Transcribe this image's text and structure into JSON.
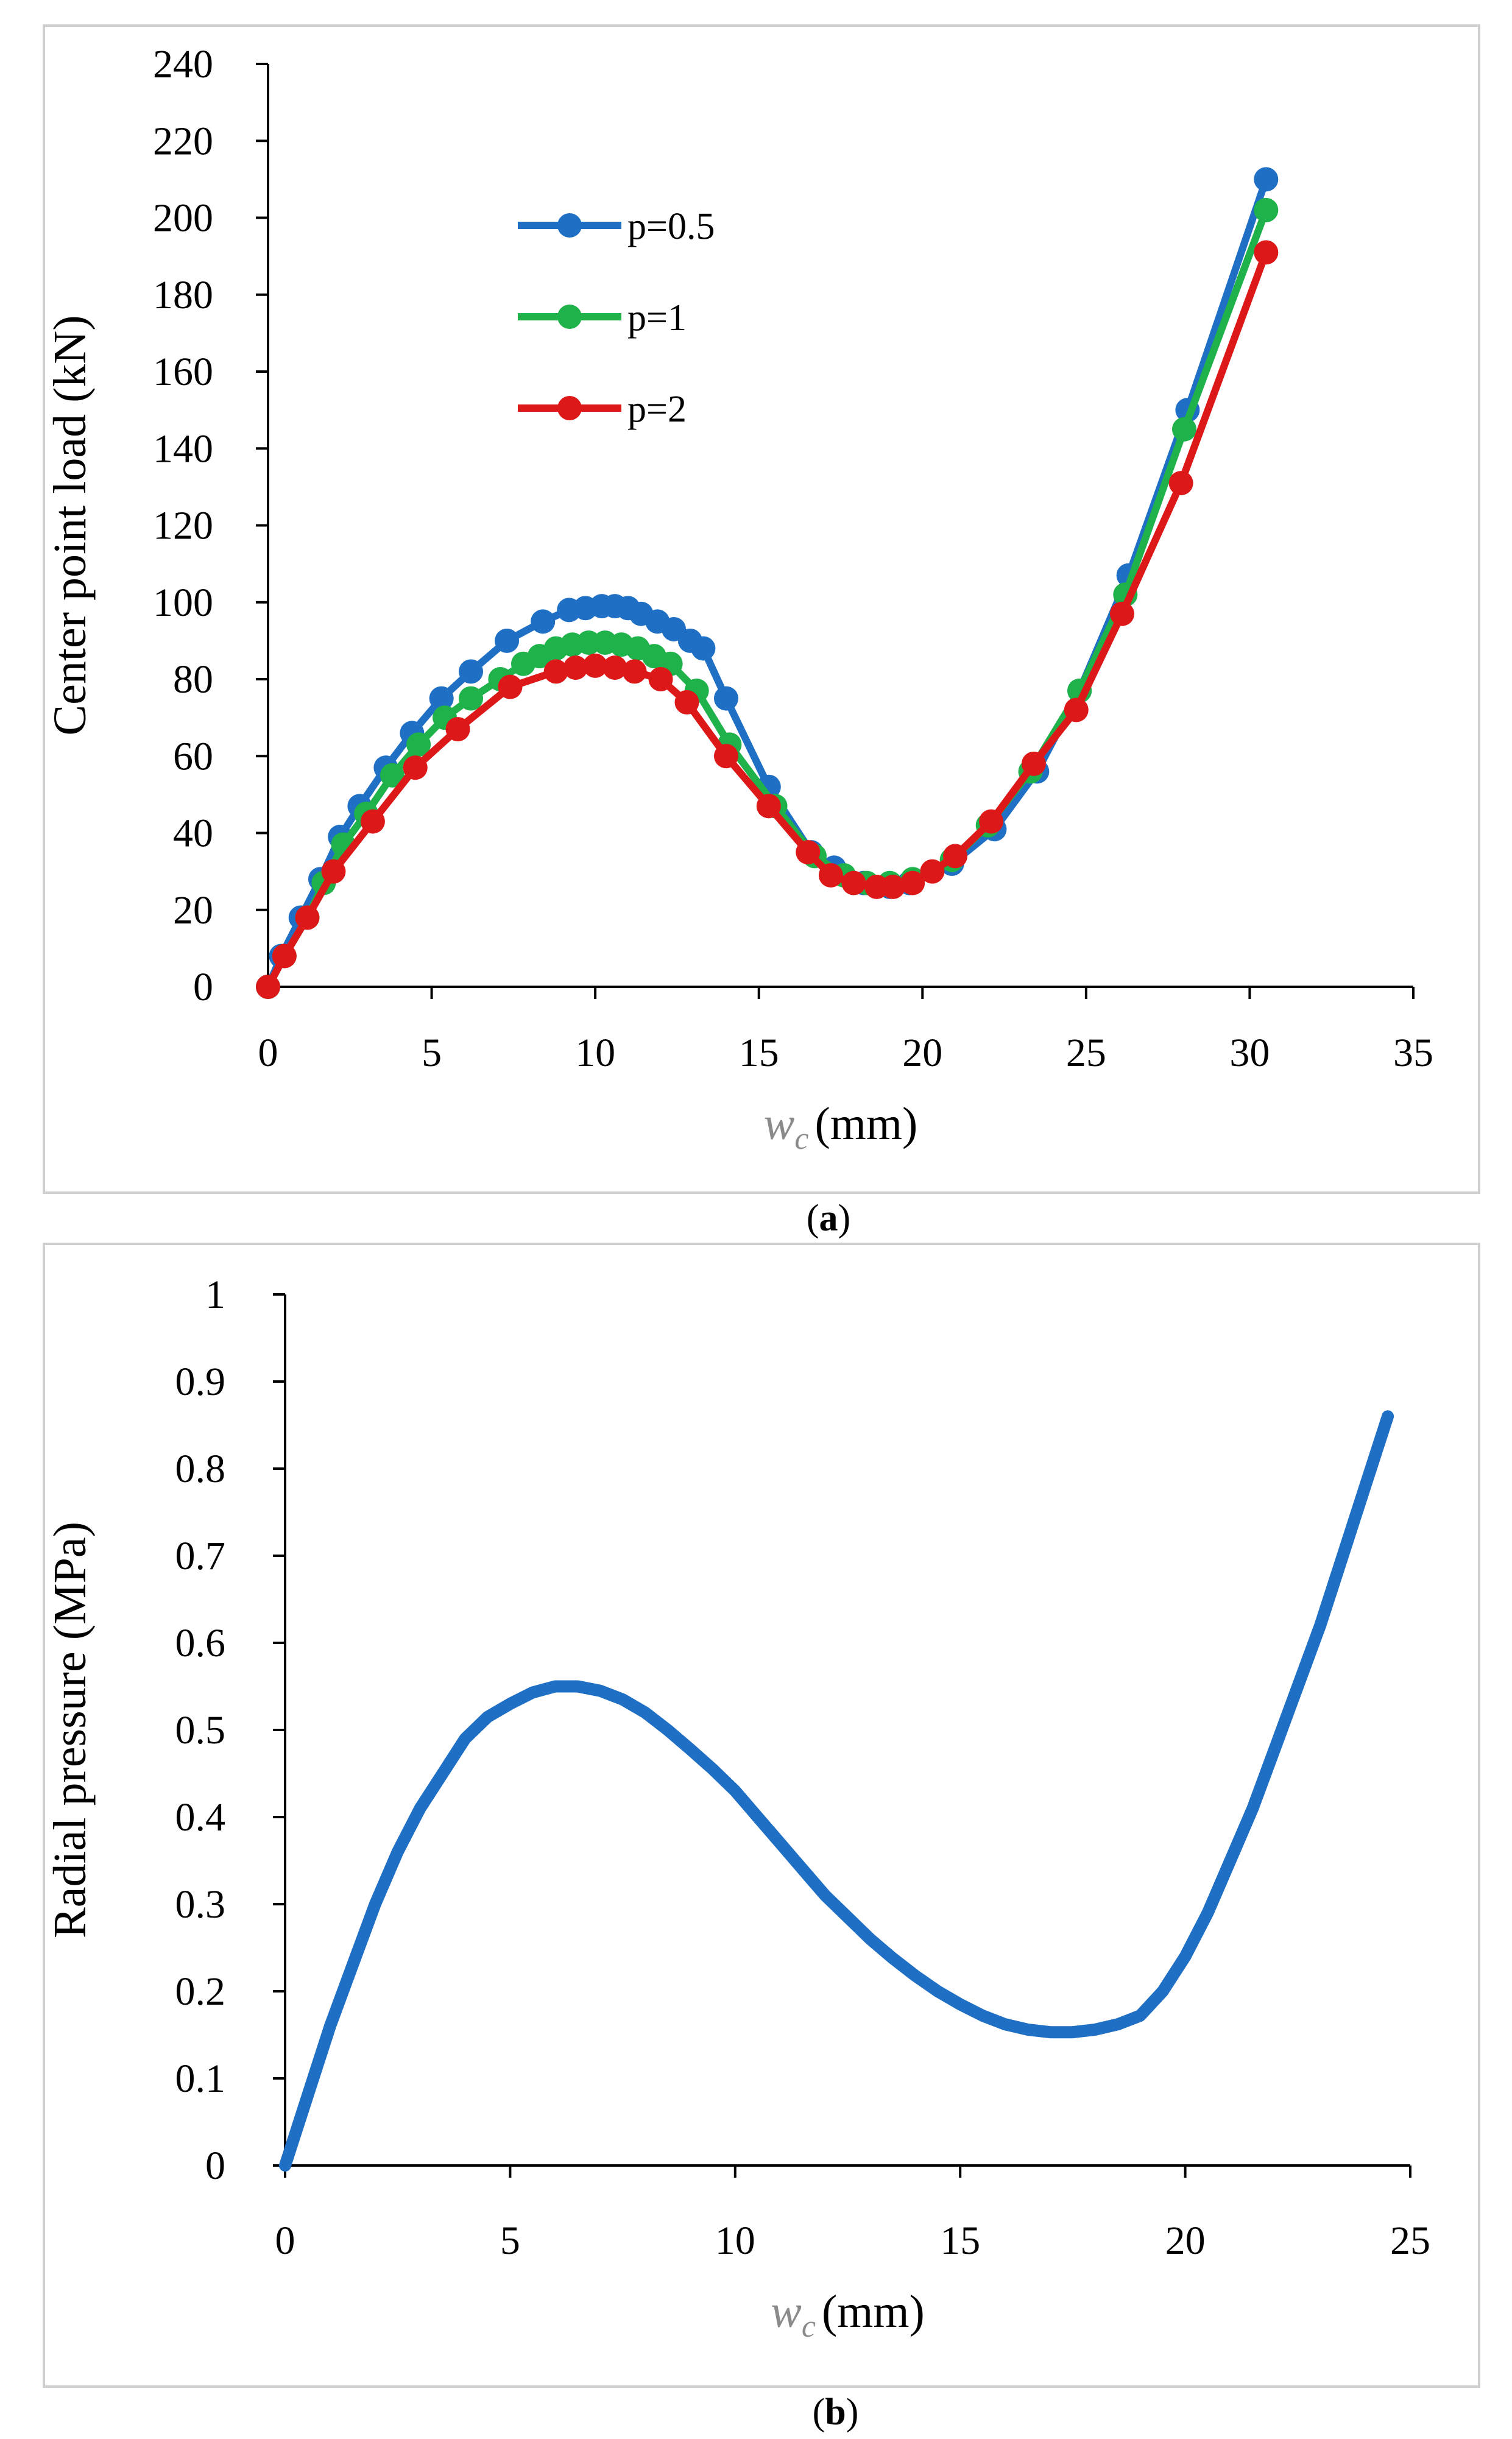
{
  "chart_data": [
    {
      "type": "line",
      "panel": "a",
      "caption_prefix": "(",
      "caption_label": "a",
      "caption_suffix": ")",
      "xlabel_var": "w",
      "xlabel_sub": "c",
      "xlabel_unit": "(mm)",
      "ylabel": "Center point load (kN)",
      "xlim": [
        0,
        35
      ],
      "ylim": [
        0,
        240
      ],
      "xticks": [
        "0",
        "5",
        "10",
        "15",
        "20",
        "25",
        "30",
        "35"
      ],
      "yticks": [
        "0",
        "20",
        "40",
        "60",
        "80",
        "100",
        "120",
        "140",
        "160",
        "180",
        "200",
        "220",
        "240"
      ],
      "legend_position": "upper-left",
      "series": [
        {
          "name": "p=0.5",
          "color": "#1f6fc5",
          "x": [
            0,
            0.4,
            1.0,
            1.6,
            2.2,
            2.8,
            3.6,
            4.4,
            5.3,
            6.2,
            7.3,
            8.4,
            9.2,
            9.7,
            10.2,
            10.6,
            11.0,
            11.4,
            11.9,
            12.4,
            12.9,
            13.3,
            14.0,
            15.3,
            16.6,
            17.3,
            18.2,
            19.0,
            19.6,
            20.9,
            22.2,
            23.5,
            24.8,
            26.3,
            28.1,
            30.5
          ],
          "y": [
            0,
            8,
            18,
            28,
            39,
            47,
            57,
            66,
            75,
            82,
            90,
            95,
            98,
            98.5,
            99,
            99,
            98.5,
            97,
            95,
            93,
            90,
            88,
            75,
            52,
            35,
            31,
            27,
            26,
            27,
            32,
            41,
            56,
            77,
            107,
            150,
            210
          ]
        },
        {
          "name": "p=1",
          "color": "#1fb14a",
          "x": [
            0,
            0.5,
            1.2,
            1.7,
            2.3,
            3.0,
            3.8,
            4.6,
            5.4,
            6.2,
            7.1,
            7.8,
            8.3,
            8.8,
            9.3,
            9.8,
            10.3,
            10.8,
            11.3,
            11.8,
            12.3,
            13.1,
            14.1,
            15.5,
            16.7,
            17.6,
            18.3,
            19.0,
            19.7,
            20.9,
            22.0,
            23.3,
            24.8,
            26.2,
            28.0,
            30.5
          ],
          "y": [
            0,
            8,
            18,
            27,
            37,
            45,
            55,
            63,
            70,
            75,
            80,
            84,
            86,
            88,
            89,
            89.5,
            89.5,
            89,
            88,
            86,
            84,
            77,
            63,
            47,
            34,
            29,
            27,
            27,
            28,
            33,
            42,
            56,
            77,
            102,
            145,
            202
          ]
        },
        {
          "name": "p=2",
          "color": "#dd1818",
          "x": [
            0,
            0.5,
            1.2,
            2.0,
            3.2,
            4.5,
            5.8,
            7.4,
            8.8,
            9.4,
            10.0,
            10.6,
            11.2,
            12.0,
            12.8,
            14.0,
            15.3,
            16.5,
            17.2,
            17.9,
            18.6,
            19.1,
            19.7,
            20.3,
            21.0,
            22.1,
            23.4,
            24.7,
            26.1,
            27.9,
            30.5
          ],
          "y": [
            0,
            8,
            18,
            30,
            43,
            57,
            67,
            78,
            82,
            83,
            83.5,
            83,
            82,
            80,
            74,
            60,
            47,
            35,
            29,
            27,
            26,
            26,
            27,
            30,
            34,
            43,
            58,
            72,
            97,
            131,
            191
          ]
        }
      ]
    },
    {
      "type": "line",
      "panel": "b",
      "caption_prefix": "(",
      "caption_label": "b",
      "caption_suffix": ")",
      "xlabel_var": "w",
      "xlabel_sub": "c",
      "xlabel_unit": "(mm)",
      "ylabel": "Radial pressure (MPa)",
      "xlim": [
        0,
        25
      ],
      "ylim": [
        0,
        1
      ],
      "xticks": [
        "0",
        "5",
        "10",
        "15",
        "20",
        "25"
      ],
      "yticks": [
        "0",
        "0.1",
        "0.2",
        "0.3",
        "0.4",
        "0.5",
        "0.6",
        "0.7",
        "0.8",
        "0.9",
        "1"
      ],
      "series": [
        {
          "name": "Radial pressure",
          "color": "#1f6fc5",
          "x": [
            0,
            0.5,
            1.0,
            1.5,
            2.0,
            2.5,
            3.0,
            3.5,
            4.0,
            4.5,
            5.0,
            5.5,
            6.0,
            6.5,
            7.0,
            7.5,
            8.0,
            8.5,
            9.0,
            9.5,
            10.0,
            10.5,
            11.0,
            11.5,
            12.0,
            12.5,
            13.0,
            13.5,
            14.0,
            14.5,
            15.0,
            15.5,
            16.0,
            16.5,
            17.0,
            17.5,
            18.0,
            18.5,
            19.0,
            19.5,
            20.0,
            20.5,
            21.0,
            21.5,
            22.0,
            22.5,
            23.0,
            23.5,
            24.0,
            24.5
          ],
          "y": [
            0,
            0.08,
            0.16,
            0.23,
            0.3,
            0.36,
            0.41,
            0.45,
            0.49,
            0.515,
            0.53,
            0.543,
            0.55,
            0.55,
            0.545,
            0.535,
            0.52,
            0.5,
            0.478,
            0.455,
            0.43,
            0.4,
            0.37,
            0.34,
            0.31,
            0.285,
            0.26,
            0.238,
            0.218,
            0.2,
            0.185,
            0.172,
            0.162,
            0.156,
            0.153,
            0.153,
            0.156,
            0.162,
            0.172,
            0.2,
            0.24,
            0.29,
            0.35,
            0.41,
            0.48,
            0.55,
            0.62,
            0.7,
            0.78,
            0.86
          ]
        }
      ]
    }
  ]
}
